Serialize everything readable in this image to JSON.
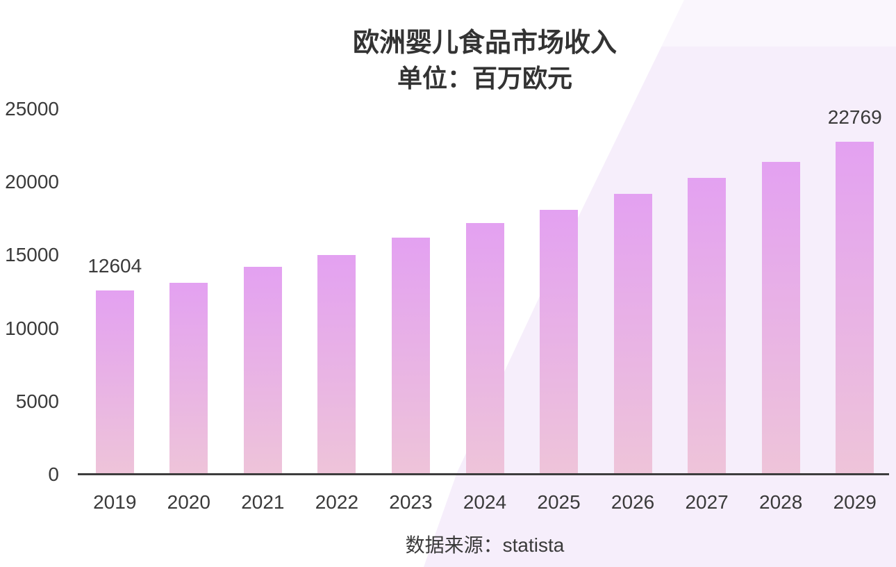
{
  "header": {
    "title": "欧洲婴儿食品市场收入",
    "subtitle": "单位：百万欧元"
  },
  "footer": {
    "source": "数据来源：statista"
  },
  "colors": {
    "bar_top": "#e3a1f1",
    "bar_bottom": "#eec4d9",
    "band": "#f6eefb",
    "axis": "#3d3d3d",
    "text": "#383838"
  },
  "chart_data": {
    "type": "bar",
    "title": "欧洲婴儿食品市场收入",
    "subtitle": "单位：百万欧元",
    "unit": "百万欧元",
    "source": "数据来源：statista",
    "categories": [
      "2019",
      "2020",
      "2021",
      "2022",
      "2023",
      "2024",
      "2025",
      "2026",
      "2027",
      "2028",
      "2029"
    ],
    "values": [
      12604,
      13100,
      14200,
      15000,
      16200,
      17200,
      18100,
      19200,
      20300,
      21400,
      22769
    ],
    "data_labels": [
      "12604",
      "",
      "",
      "",
      "",
      "",
      "",
      "",
      "",
      "",
      "22769"
    ],
    "yticks": [
      0,
      5000,
      10000,
      15000,
      20000,
      25000
    ],
    "ylim": [
      0,
      25000
    ],
    "grid": false,
    "legend": false,
    "bar_gradient": true
  }
}
